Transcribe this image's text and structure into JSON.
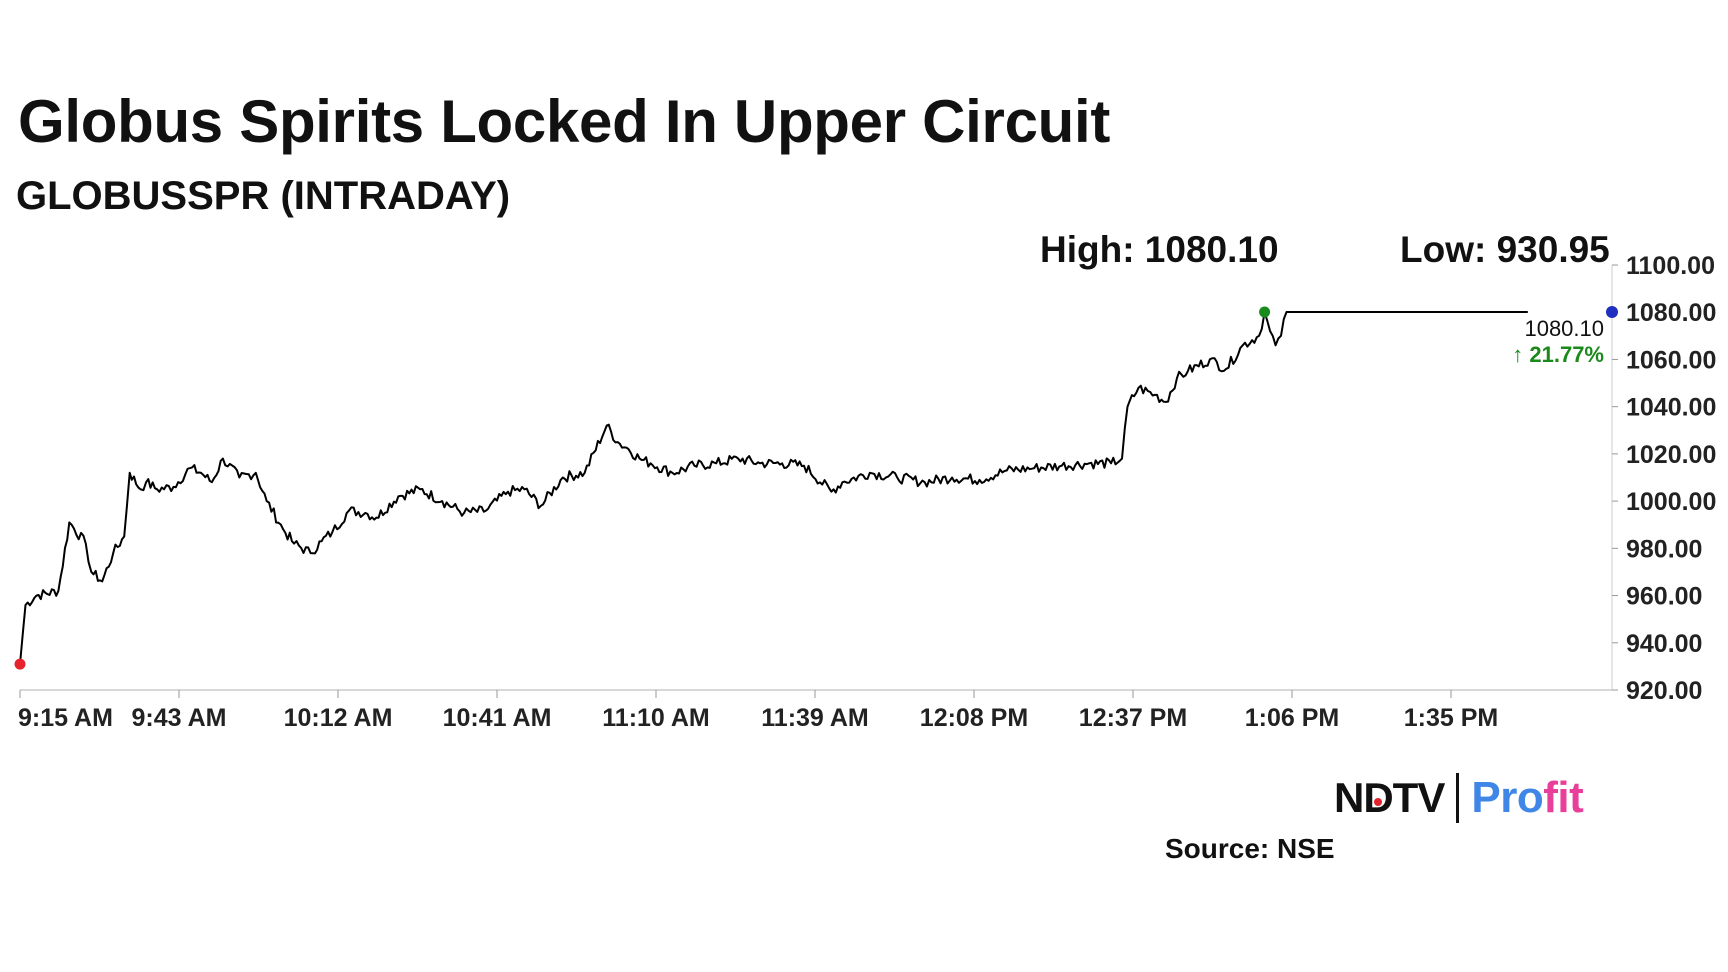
{
  "header": {
    "title": "Globus Spirits Locked In Upper Circuit",
    "subtitle": "GLOBUSSPR (INTRADAY)"
  },
  "stats": {
    "high": "High: 1080.10",
    "low": "Low: 930.95"
  },
  "branding": {
    "ndtv": "NDTV",
    "profit_prefix": "Pro",
    "profit_suffix": "fit",
    "source": "Source: NSE"
  },
  "chart_data": {
    "type": "line",
    "title": "Globus Spirits Locked In Upper Circuit",
    "subtitle": "GLOBUSSPR (INTRADAY)",
    "xlabel": "",
    "ylabel": "",
    "x_ticks": [
      "9:15 AM",
      "9:43 AM",
      "10:12 AM",
      "10:41 AM",
      "11:10 AM",
      "11:39 AM",
      "12:08 PM",
      "12:37 PM",
      "1:06 PM",
      "1:35 PM"
    ],
    "y_ticks": [
      "1100.00",
      "1080.00",
      "1060.00",
      "1040.00",
      "1020.00",
      "1000.00",
      "980.00",
      "960.00",
      "940.00",
      "920.00"
    ],
    "ylim": [
      920,
      1100
    ],
    "grid": false,
    "series": [
      {
        "time": [
          "9:15 AM",
          "9:16 AM",
          "9:18 AM",
          "9:22 AM",
          "9:24 AM",
          "9:27 AM",
          "9:28 AM",
          "9:30 AM",
          "9:32 AM",
          "9:34 AM",
          "9:35 AM",
          "9:37 AM",
          "9:38 AM",
          "9:40 AM",
          "9:43 AM",
          "9:46 AM",
          "9:48 AM",
          "9:50 AM",
          "9:52 AM",
          "9:55 AM",
          "9:58 AM",
          "10:00 AM",
          "10:03 AM",
          "10:05 AM",
          "10:08 AM",
          "10:10 AM",
          "10:12 AM",
          "10:15 AM",
          "10:18 AM",
          "10:20 AM",
          "10:24 AM",
          "10:28 AM",
          "10:32 AM",
          "10:36 AM",
          "10:40 AM",
          "10:44 AM",
          "10:47 AM",
          "10:50 AM",
          "10:54 AM",
          "10:58 AM",
          "11:02 AM",
          "11:04 AM",
          "11:06 AM",
          "11:08 AM",
          "11:10 AM",
          "11:14 AM",
          "11:18 AM",
          "11:22 AM",
          "11:26 AM",
          "11:30 AM",
          "11:34 AM",
          "11:38 AM",
          "11:43 AM",
          "11:45 AM",
          "11:50 AM",
          "11:55 AM",
          "12:00 PM",
          "12:05 PM",
          "12:10 PM",
          "12:15 PM",
          "12:20 PM",
          "12:25 PM",
          "12:30 PM",
          "12:34 PM",
          "12:36 PM",
          "12:37 PM",
          "12:39 PM",
          "12:42 PM",
          "12:44 PM",
          "12:46 PM",
          "12:48 PM",
          "12:52 PM",
          "12:55 PM",
          "12:58 PM",
          "1:01 PM",
          "1:02 PM",
          "1:03 PM",
          "1:04 PM",
          "1:05 PM",
          "1:06 PM",
          "1:10 PM",
          "1:20 PM",
          "1:30 PM",
          "1:40 PM",
          "1:45 PM",
          "1:50 PM"
        ],
        "values": [
          930.95,
          956,
          960,
          962,
          991,
          982,
          970,
          966,
          978,
          985,
          1012,
          1005,
          1008,
          1005,
          1006,
          1014,
          1012,
          1008,
          1018,
          1010,
          1012,
          1000,
          988,
          982,
          978,
          983,
          987,
          996,
          995,
          993,
          1002,
          1005,
          1000,
          995,
          996,
          1004,
          1005,
          998,
          1010,
          1012,
          1032,
          1025,
          1022,
          1018,
          1016,
          1012,
          1015,
          1016,
          1018,
          1016,
          1016,
          1015,
          1004,
          1008,
          1012,
          1010,
          1008,
          1010,
          1009,
          1013,
          1014,
          1015,
          1016,
          1016,
          1018,
          1040,
          1048,
          1045,
          1042,
          1052,
          1055,
          1060,
          1056,
          1066,
          1070,
          1080.1,
          1072,
          1066,
          1070,
          1080.1,
          1080.1,
          1080.1,
          1080.1,
          1080.1,
          1080.1,
          1080.1
        ]
      }
    ],
    "markers": {
      "open": 930.95,
      "high": 1080.1,
      "last": 1080.1
    },
    "last_label": "1080.10",
    "change_label": "↑ 21.77%",
    "colors": {
      "line": "#000000",
      "open_marker": "#e5232d",
      "high_marker": "#1a8a1a",
      "last_marker": "#1f2fbf",
      "change": "#1a8a1a",
      "axis": "#cccccc"
    }
  }
}
